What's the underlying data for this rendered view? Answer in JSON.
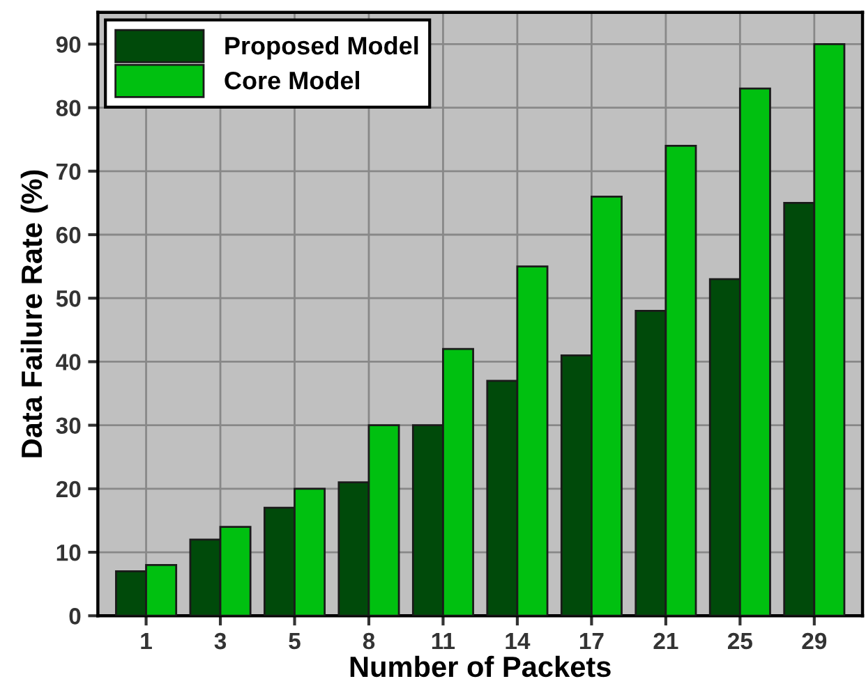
{
  "chart_data": {
    "type": "bar",
    "xlabel": "Number of Packets",
    "ylabel": "Data Failure Rate (%)",
    "categories": [
      "1",
      "3",
      "5",
      "8",
      "11",
      "14",
      "17",
      "21",
      "25",
      "29"
    ],
    "series": [
      {
        "name": "Proposed Model",
        "color": "#004a0a",
        "values": [
          7,
          12,
          17,
          21,
          30,
          37,
          41,
          48,
          53,
          65
        ]
      },
      {
        "name": "Core Model",
        "color": "#00c010",
        "values": [
          8,
          14,
          20,
          30,
          42,
          55,
          66,
          74,
          83,
          90
        ]
      }
    ],
    "ylim": [
      0,
      95
    ],
    "yticks": [
      0,
      10,
      20,
      30,
      40,
      50,
      60,
      70,
      80,
      90
    ],
    "grid": true,
    "legend": "top left"
  }
}
